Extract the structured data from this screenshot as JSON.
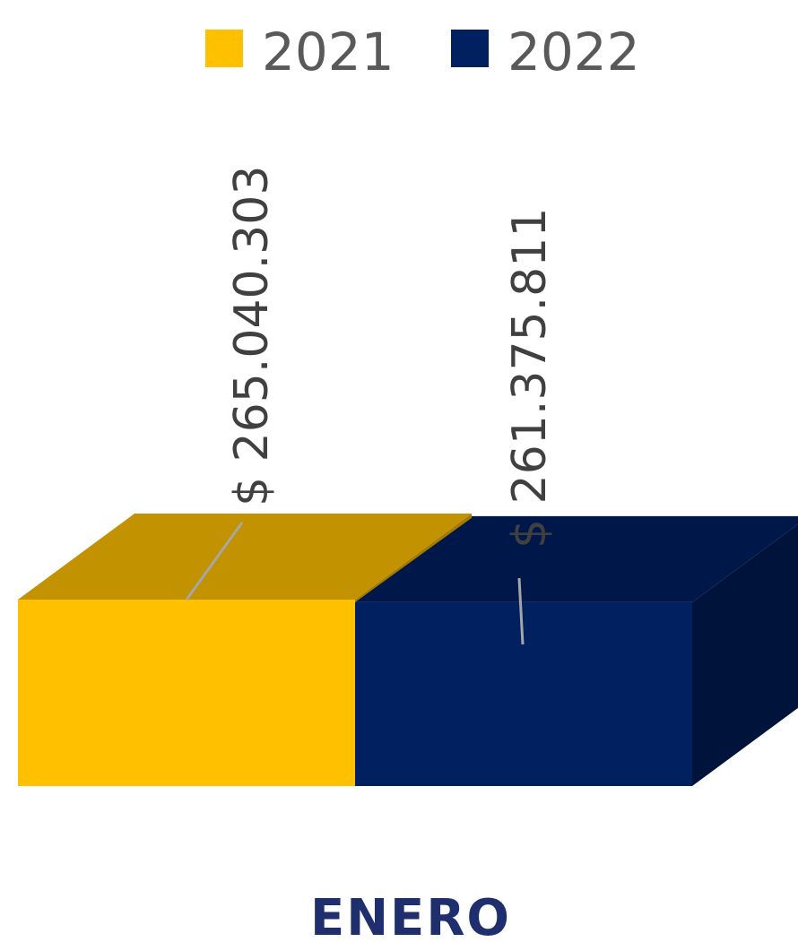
{
  "chart_data": {
    "type": "bar",
    "style": "3d-clustered-column",
    "categories": [
      "ENERO"
    ],
    "series": [
      {
        "name": "2021",
        "values": [
          265040303
        ],
        "label": "$ 265.040.303",
        "color": "#ffc000"
      },
      {
        "name": "2022",
        "values": [
          261375811
        ],
        "label": "$ 261.375.811",
        "color": "#002060"
      }
    ],
    "legend_position": "top",
    "grid": false,
    "data_labels": true,
    "data_label_orientation": "vertical"
  }
}
